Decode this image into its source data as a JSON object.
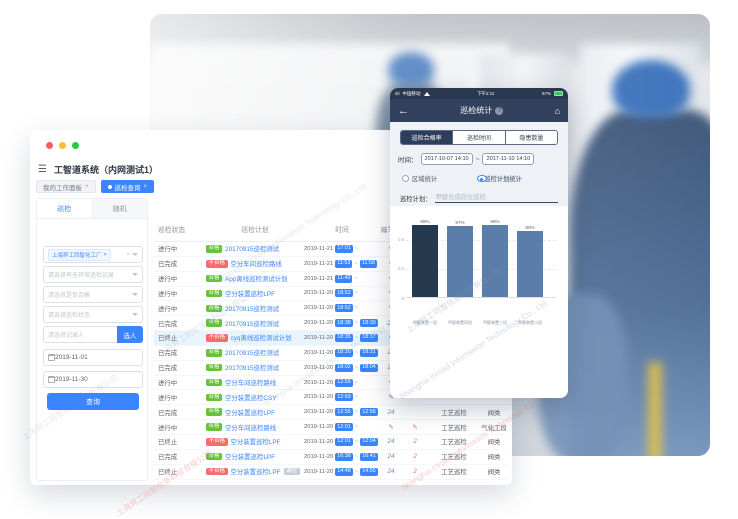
{
  "company": {
    "name_cn": "上海异工同智信息科技有限公司",
    "name_en": "Shanghai Inroad Information Technology Co., Ltd."
  },
  "desktop": {
    "title": "工智道系统（内网测试1）",
    "workspace_tabs": [
      {
        "label": "我的工作面板",
        "close": "×",
        "active": false
      },
      {
        "label": "巡检查询",
        "close": "×",
        "active": true
      }
    ],
    "sidebar": {
      "tabs": [
        {
          "label": "巡检"
        },
        {
          "label": "随机"
        }
      ],
      "org_tag": "上海异工同智化工厂",
      "org_tag_close": "×",
      "filters": [
        "请选择有无异常巡检记录",
        "请选择是否合格",
        "请选择巡检状态"
      ],
      "record_person_placeholder": "请选择记录人",
      "pick_person_button": "选人",
      "date_from": "2019-11-01",
      "date_to": "2019-11-30",
      "search_button": "查询"
    },
    "table": {
      "headers": [
        "巡检状态",
        "巡检计划",
        "时间",
        "编写人",
        "",
        "",
        ""
      ],
      "rows": [
        {
          "status": "进行中",
          "result": "合格",
          "result_type": "ok",
          "plan": "20170915巡检测试",
          "plan_badge": "",
          "date": "2019-11-21",
          "start": "17:01",
          "end": "",
          "col4": "✎",
          "col5": "",
          "type": "",
          "area": "",
          "highlight": false
        },
        {
          "status": "已完成",
          "result": "不合格",
          "result_type": "bad",
          "plan": "空分车间巡检路线",
          "plan_badge": "",
          "date": "2019-11-21",
          "start": "11:53",
          "end": "11:58",
          "col4": "✎",
          "col5": "",
          "type": "",
          "area": "",
          "highlight": false
        },
        {
          "status": "进行中",
          "result": "合格",
          "result_type": "ok",
          "plan": "App离线巡检测试计划",
          "plan_badge": "",
          "date": "2019-11-21",
          "start": "11:49",
          "end": "",
          "col4": "✎",
          "col5": "",
          "type": "",
          "area": "",
          "highlight": false
        },
        {
          "status": "进行中",
          "result": "合格",
          "result_type": "ok",
          "plan": "空分装置巡检LPF",
          "plan_badge": "",
          "date": "2019-11-20",
          "start": "18:52",
          "end": "",
          "col4": "✎",
          "col5": "",
          "type": "",
          "area": "",
          "highlight": false
        },
        {
          "status": "进行中",
          "result": "合格",
          "result_type": "ok",
          "plan": "20170915巡检测试",
          "plan_badge": "",
          "date": "2019-11-20",
          "start": "18:52",
          "end": "",
          "col4": "✎",
          "col5": "",
          "type": "",
          "area": "",
          "highlight": false
        },
        {
          "status": "已完成",
          "result": "合格",
          "result_type": "ok",
          "plan": "20170915巡检测试",
          "plan_badge": "",
          "date": "2019-11-20",
          "start": "18:38",
          "end": "18:39",
          "col4": "21",
          "col5": "",
          "type": "",
          "area": "",
          "highlight": false
        },
        {
          "status": "已终止",
          "result": "不合格",
          "result_type": "bad",
          "plan": "cyq离线巡检测试计划",
          "plan_badge": "",
          "date": "2019-11-20",
          "start": "18:35",
          "end": "18:37",
          "col4": "✎",
          "col5": "",
          "type": "",
          "area": "",
          "highlight": true
        },
        {
          "status": "已完成",
          "result": "合格",
          "result_type": "ok",
          "plan": "20170915巡检测试",
          "plan_badge": "",
          "date": "2019-11-20",
          "start": "18:30",
          "end": "18:31",
          "col4": "21",
          "col5": "",
          "type": "",
          "area": "",
          "highlight": false
        },
        {
          "status": "已完成",
          "result": "合格",
          "result_type": "ok",
          "plan": "20170915巡检测试",
          "plan_badge": "",
          "date": "2019-11-20",
          "start": "18:02",
          "end": "18:04",
          "col4": "21",
          "col5": "",
          "type": "",
          "area": "",
          "highlight": false
        },
        {
          "status": "进行中",
          "result": "合格",
          "result_type": "ok",
          "plan": "空分车间巡检路线",
          "plan_badge": "",
          "date": "2019-11-20",
          "start": "12:59",
          "end": "",
          "col4": "✎",
          "col5": "",
          "type": "",
          "area": "",
          "highlight": false
        },
        {
          "status": "进行中",
          "result": "合格",
          "result_type": "ok",
          "plan": "空分装置巡检CSY",
          "plan_badge": "",
          "date": "2019-11-20",
          "start": "12:59",
          "end": "",
          "col4": "✎",
          "col5": "",
          "type": "",
          "area": "",
          "highlight": false
        },
        {
          "status": "已完成",
          "result": "合格",
          "result_type": "ok",
          "plan": "空分装置巡检LPF",
          "plan_badge": "",
          "date": "2019-11-20",
          "start": "12:55",
          "end": "12:56",
          "col4": "24",
          "col5": "",
          "type": "工艺巡检",
          "area": "阀类",
          "highlight": false
        },
        {
          "status": "进行中",
          "result": "合格",
          "result_type": "ok",
          "plan": "空分车间巡检路线",
          "plan_badge": "",
          "date": "2019-11-20",
          "start": "12:01",
          "end": "",
          "col4": "✎",
          "col5": "✎",
          "type": "工艺巡检",
          "area": "气化工段",
          "highlight": false
        },
        {
          "status": "已终止",
          "result": "不合格",
          "result_type": "bad",
          "plan": "空分装置巡检LPF",
          "plan_badge": "",
          "date": "2019-11-20",
          "start": "12:01",
          "end": "12:04",
          "col4": "24",
          "col5": "2",
          "type": "工艺巡检",
          "area": "阀类",
          "highlight": false
        },
        {
          "status": "已完成",
          "result": "合格",
          "result_type": "ok",
          "plan": "空分装置巡检LPF",
          "plan_badge": "",
          "date": "2019-11-20",
          "start": "16:38",
          "end": "16:41",
          "col4": "24",
          "col5": "2",
          "type": "工艺巡检",
          "area": "阀类",
          "highlight": false
        },
        {
          "status": "已终止",
          "result": "不合格",
          "result_type": "bad",
          "plan": "空分装置巡检LPF",
          "plan_badge": "漏检",
          "date": "2019-11-20",
          "start": "14:48",
          "end": "14:55",
          "col4": "24",
          "col5": "2",
          "type": "工艺巡检",
          "area": "阀类",
          "highlight": false
        }
      ]
    }
  },
  "phone": {
    "status_bar": {
      "carrier": "中国移动",
      "time": "下午2:11",
      "battery": "67%"
    },
    "nav": {
      "title": "巡检统计",
      "help": "?"
    },
    "segments": [
      {
        "label": "巡检合格率",
        "active": true
      },
      {
        "label": "巡检时间",
        "active": false
      },
      {
        "label": "隐患数量",
        "active": false
      }
    ],
    "time_label": "时间：",
    "time_from": "2017-10-07 14:10",
    "time_separator": "~",
    "time_to": "2017-11-10 14:10",
    "radios": [
      {
        "label": "区域统计",
        "selected": false
      },
      {
        "label": "巡检计划统计",
        "selected": true
      }
    ],
    "plan_label": "巡检计划：",
    "plan_value": "甲醇合成岗位巡检",
    "chart_data": {
      "type": "bar",
      "title": "",
      "categories": [
        "甲醇装置一班",
        "甲醇装置四班",
        "甲醇装置三班",
        "甲醇装置二班"
      ],
      "values": [
        99,
        97,
        98,
        90
      ],
      "value_labels": [
        "99%",
        "97%",
        "98%",
        "90%"
      ],
      "unit": "%",
      "ylim": [
        0,
        1.0
      ],
      "yticks": [
        0,
        0.4,
        0.8
      ],
      "grid": true,
      "legend": false,
      "bar_colors": [
        "#24384e",
        "#5a7ea9",
        "#5a7ea9",
        "#5a7ea9"
      ]
    }
  },
  "colors": {
    "accent_blue": "#3a84ff",
    "ok_green": "#67c23a",
    "bad_red": "#f56c6c",
    "phone_navy": "#31415e",
    "bar_dark": "#24384e",
    "bar_blue": "#5a7ea9",
    "highlight_row": "#e9f5fe"
  }
}
